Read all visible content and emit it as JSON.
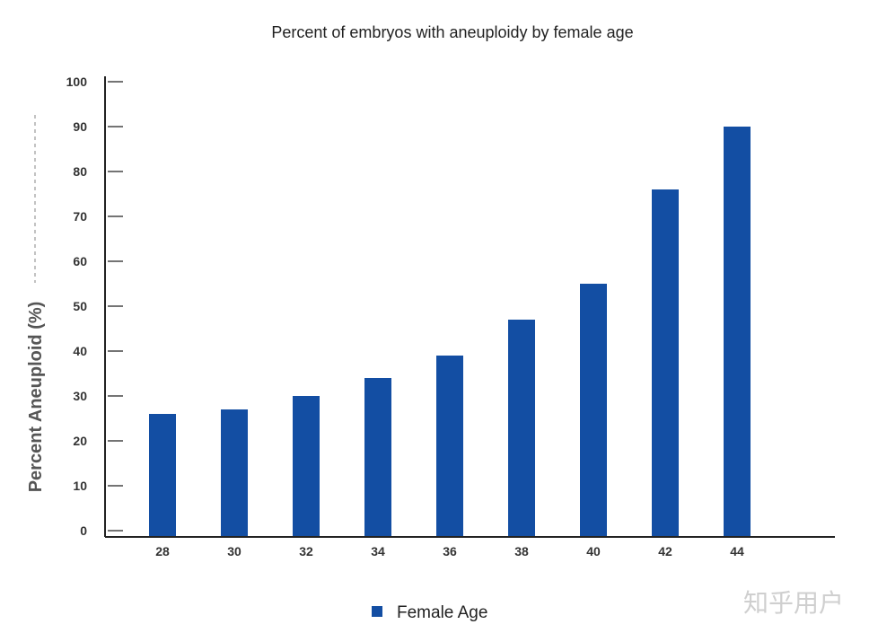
{
  "chart_data": {
    "type": "bar",
    "title": "Percent of embryos with aneuploidy by female age",
    "xlabel": "",
    "ylabel": "Percent Aneuploid   (%)",
    "categories": [
      "28",
      "30",
      "32",
      "34",
      "36",
      "38",
      "40",
      "42",
      "44"
    ],
    "series": [
      {
        "name": "Female Age",
        "values": [
          26,
          27,
          30,
          34,
          39,
          47,
          55,
          76,
          90
        ]
      }
    ],
    "ylim": [
      0,
      100
    ],
    "yticks": [
      0,
      10,
      20,
      30,
      40,
      50,
      60,
      70,
      80,
      90,
      100
    ],
    "grid": false,
    "legend_position": "bottom-center",
    "bar_color": "#134ea3"
  },
  "watermark": "知乎用户"
}
